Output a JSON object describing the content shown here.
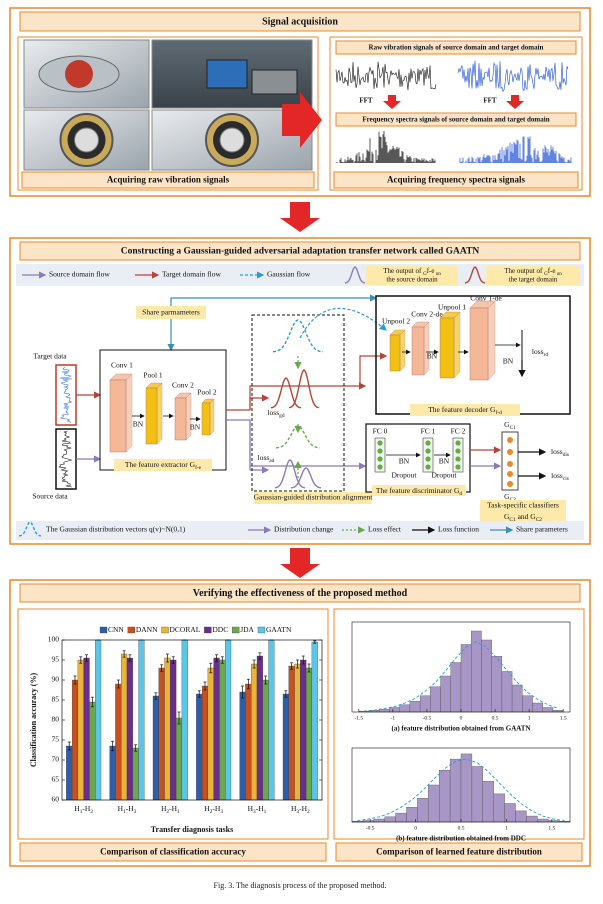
{
  "panel1": {
    "title": "Signal acquisition",
    "left_caption": "Acquiring raw vibration signals",
    "right_top": "Raw vibration signals of source domain and target domain",
    "fft": [
      "FFT",
      "FFT"
    ],
    "right_mid": "Frequency spectra signals of source domain and target domain",
    "right_caption": "Acquiring frequency spectra signals"
  },
  "panel2": {
    "title": "Constructing a Gaussian-guided adversarial adaptation transfer network called GAATN",
    "legend": [
      "Source domain flow",
      "Target domain flow",
      "Gaussian flow",
      {
        "lines": [
          [
            "The output of ",
            "G",
            "f-e",
            " on"
          ],
          "the source domain"
        ]
      },
      {
        "lines": [
          [
            "The output of ",
            "G",
            "f-e",
            " on"
          ],
          "the target domain"
        ]
      }
    ],
    "labels": {
      "share": "Share parmameters",
      "target": "Target data",
      "source": "Source data",
      "conv1": "Conv 1",
      "pool1": "Pool 1",
      "conv2": "Conv 2",
      "pool2": "Pool 2",
      "bn_e1": "BN",
      "bn_e2": "BN",
      "extractor": [
        "The feature extractor G",
        "f-e"
      ],
      "align": "Gaussian-guided distribution alignment",
      "loss_g": [
        "loss",
        "gd"
      ],
      "loss_a": [
        "loss",
        "ad"
      ],
      "dec_conv1": "Conv 1-de",
      "dec_conv2": "Conv 2-de",
      "unpool2": "Unpool 2",
      "unpool1": "Unpool 1",
      "bn_d1": "BN",
      "bn_d2": "BN",
      "loss_r": [
        "loss",
        "rd"
      ],
      "decoder": [
        "The feature decoder G",
        "f-d"
      ],
      "fc0": "FC 0",
      "fc1": "FC 1",
      "fc2": "FC 2",
      "bn_f1": "BN",
      "drop1": "Dropout",
      "bn_f2": "BN",
      "drop2": "Dropout",
      "disc": [
        "The feature discriminator G",
        "d"
      ],
      "gc1": [
        "G",
        "C1"
      ],
      "gc2": [
        "G",
        "C2"
      ],
      "loss_c1": [
        "loss",
        "dis"
      ],
      "loss_c2": [
        "loss",
        "cls"
      ],
      "clf1": "Task-specific classifiers",
      "clf2": [
        "G",
        "C1",
        " and G",
        "C2"
      ]
    },
    "bottom_legend": [
      "The Gaussian distribution vectors q(v)~N(0,1)",
      "Distribution change",
      "Loss effect",
      "Loss function",
      "Share parameters"
    ]
  },
  "panel3": {
    "title": "Verifying the effectiveness of the proposed method",
    "left_caption": "Comparison of  classification accuracy",
    "right_caption": "Comparison of learned feature distribution"
  },
  "chart_data": [
    {
      "type": "bar",
      "ylabel": "Classification accuracy (%)",
      "xlabel": "Transfer diagnosis tasks",
      "legend": "top",
      "categories": [
        [
          "H",
          "1",
          "-H",
          "2"
        ],
        [
          "H",
          "1",
          "-H",
          "3"
        ],
        [
          "H",
          "2",
          "-H",
          "1"
        ],
        [
          "H",
          "2",
          "-H",
          "3"
        ],
        [
          "H",
          "3",
          "-H",
          "1"
        ],
        [
          "H",
          "3",
          "-H",
          "2"
        ]
      ],
      "ylim": [
        60,
        100
      ],
      "yticks": [
        60,
        65,
        70,
        75,
        80,
        85,
        90,
        95,
        100
      ],
      "series": [
        {
          "name": "CNN",
          "color": "#2f5ea8",
          "values": [
            73.5,
            73.5,
            86,
            86.5,
            87,
            86.5
          ],
          "errors": [
            1,
            1.2,
            0.8,
            0.8,
            1.5,
            0.8
          ]
        },
        {
          "name": "DANN",
          "color": "#c8501e",
          "values": [
            90,
            89,
            93,
            88.5,
            89,
            93.5
          ],
          "errors": [
            1,
            1,
            0.8,
            1,
            1.2,
            0.8
          ]
        },
        {
          "name": "DCORAL",
          "color": "#e8b43c",
          "values": [
            95,
            96.5,
            95.5,
            93,
            94,
            94
          ],
          "errors": [
            0.8,
            0.8,
            1,
            1.2,
            1,
            1
          ]
        },
        {
          "name": "DDC",
          "color": "#6b2e8a",
          "values": [
            95.5,
            95.5,
            95,
            95.5,
            96,
            95
          ],
          "errors": [
            0.8,
            0.8,
            0.8,
            0.8,
            0.8,
            1
          ]
        },
        {
          "name": "JDA",
          "color": "#6aa84f",
          "values": [
            84.5,
            73,
            80.5,
            95,
            90,
            93
          ],
          "errors": [
            1.2,
            0.8,
            1.5,
            0.8,
            1,
            1
          ]
        },
        {
          "name": "GAATN",
          "color": "#5bc6e8",
          "values": [
            100,
            100,
            100,
            100,
            100,
            99.5
          ],
          "errors": [
            0,
            0,
            0,
            0,
            0,
            0.3
          ]
        }
      ]
    },
    {
      "type": "histogram",
      "title": "(a) feature distribution obtained from  GAATN",
      "color": "#a897c6",
      "bins": [
        -1.5,
        -1.35,
        -1.2,
        -1.05,
        -0.9,
        -0.75,
        -0.6,
        -0.45,
        -0.3,
        -0.15,
        0,
        0.15,
        0.3,
        0.45,
        0.6,
        0.75,
        0.9,
        1.05,
        1.2,
        1.35,
        1.5
      ],
      "values": [
        1,
        2,
        3,
        5,
        8,
        12,
        18,
        28,
        40,
        55,
        75,
        90,
        80,
        62,
        45,
        30,
        18,
        10,
        5,
        2
      ],
      "fit": [
        1,
        2,
        4,
        6,
        10,
        15,
        23,
        33,
        46,
        60,
        72,
        78,
        72,
        60,
        46,
        33,
        22,
        14,
        8,
        4
      ],
      "xlim": [
        -1.6,
        1.6
      ],
      "xticks": [
        -1.5,
        -1,
        -0.5,
        0,
        0.5,
        1,
        1.5
      ],
      "ylim": [
        0,
        100
      ]
    },
    {
      "type": "histogram",
      "title": "(b) feature distribution obtained from  DDC",
      "color": "#a897c6",
      "bins": [
        -0.7,
        -0.58,
        -0.46,
        -0.34,
        -0.22,
        -0.1,
        0.02,
        0.14,
        0.26,
        0.38,
        0.5,
        0.62,
        0.74,
        0.86,
        0.98,
        1.1,
        1.22,
        1.34,
        1.46,
        1.58,
        1.7
      ],
      "values": [
        1,
        2,
        4,
        7,
        12,
        20,
        32,
        50,
        70,
        85,
        92,
        75,
        55,
        38,
        25,
        15,
        8,
        4,
        2,
        1
      ],
      "fit": [
        2,
        4,
        7,
        12,
        20,
        30,
        43,
        58,
        72,
        82,
        85,
        80,
        68,
        53,
        38,
        25,
        15,
        8,
        4,
        2
      ],
      "xlim": [
        -0.7,
        1.7
      ],
      "xticks": [
        -0.5,
        0,
        0.5,
        1,
        1.5
      ],
      "ylim": [
        0,
        100
      ]
    }
  ],
  "caption": "Fig. 3. The diagnosis process of the proposed method."
}
